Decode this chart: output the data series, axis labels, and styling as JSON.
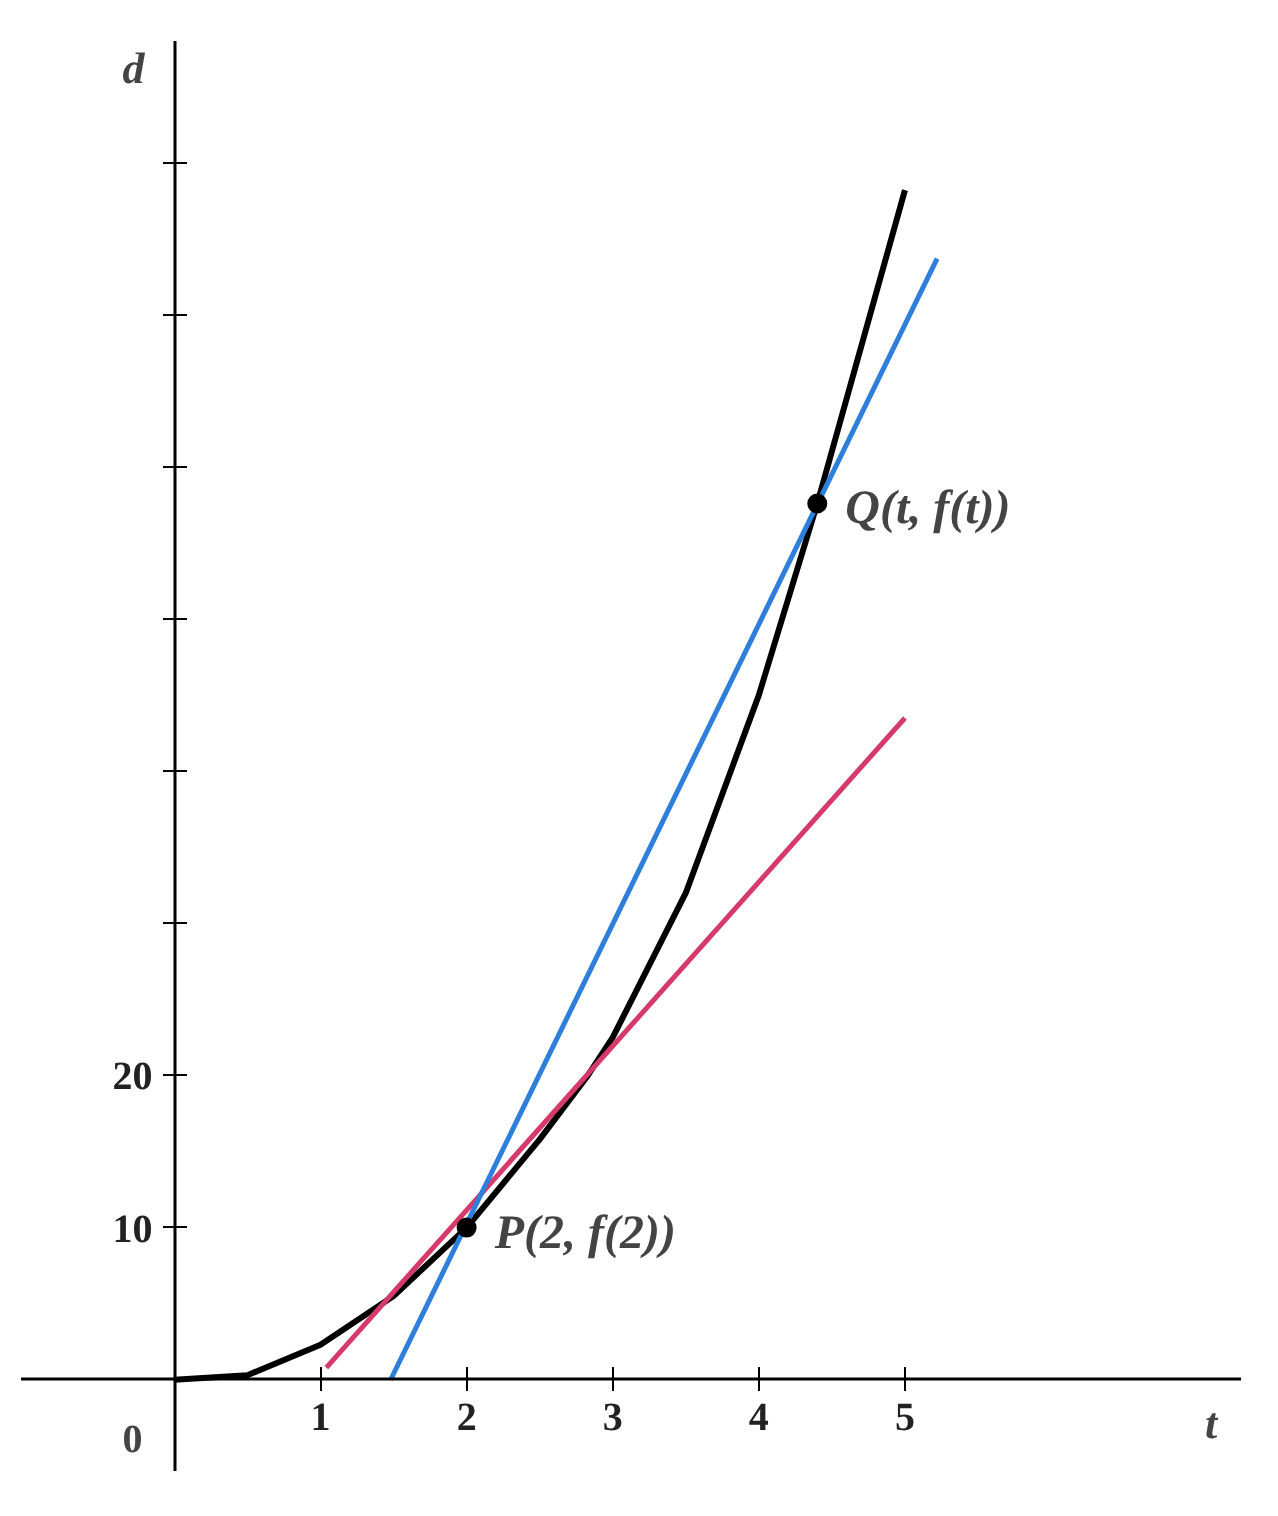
{
  "chart_data": {
    "type": "line",
    "xlabel": "t",
    "ylabel": "d",
    "xlim": [
      -1.05,
      7.3
    ],
    "ylim": [
      -6,
      88
    ],
    "xticks": [
      1,
      2,
      3,
      4,
      5
    ],
    "yticks": [
      10,
      20,
      {
        "value": 30,
        "label": null
      },
      {
        "value": 40,
        "label": null
      },
      {
        "value": 50,
        "label": null
      },
      {
        "value": 60,
        "label": null
      },
      {
        "value": 70,
        "label": null
      },
      {
        "value": 80,
        "label": null
      }
    ],
    "marker": "none",
    "line_style": "solid",
    "series": [
      {
        "color": "#000000",
        "x": [
          0,
          0.5,
          1,
          1.5,
          2,
          2.5,
          2.83,
          3,
          3.5,
          4,
          4.4,
          5
        ],
        "values": [
          0,
          0.3,
          2.3,
          5.5,
          10,
          15.8,
          20,
          22.5,
          32,
          45,
          57.6,
          78.2
        ]
      },
      {
        "color": "#d63a6a",
        "x": [
          1.04,
          5
        ],
        "values": [
          0.8,
          43.5
        ]
      },
      {
        "color": "#2e7fdc",
        "x": [
          1.48,
          5.22
        ],
        "values": [
          0,
          73.7
        ]
      },
      {
        "type": "scatter",
        "marker": "circle",
        "color": "#000000",
        "x": [
          2,
          4.4
        ],
        "values": [
          10,
          57.6
        ]
      }
    ],
    "annotations": [
      {
        "text": "0",
        "x": 0,
        "y": 0
      },
      {
        "text": "P(2, f(2))",
        "x": 2,
        "y": 10
      },
      {
        "text": "Q(t, f(t))",
        "x": 4.4,
        "y": 57.6
      }
    ]
  }
}
